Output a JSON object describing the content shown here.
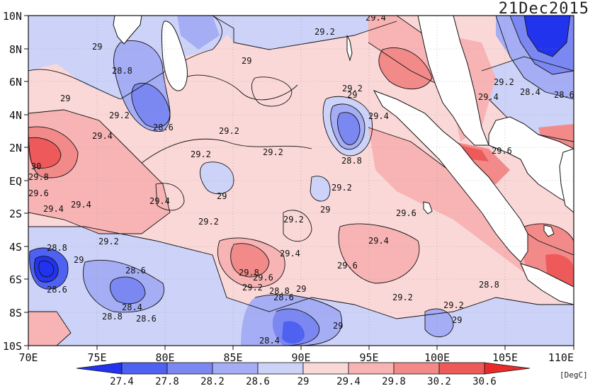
{
  "title": "21Dec2015",
  "unit": "[DegC]",
  "lat_labels": [
    "10N",
    "8N",
    "6N",
    "4N",
    "2N",
    "EQ",
    "2S",
    "4S",
    "6S",
    "8S",
    "10S"
  ],
  "lon_labels": [
    "70E",
    "75E",
    "80E",
    "85E",
    "90E",
    "95E",
    "100E",
    "105E",
    "110E"
  ],
  "colorbar": {
    "ticks": [
      "27.4",
      "27.8",
      "28.2",
      "28.6",
      "29",
      "29.4",
      "29.8",
      "30.2",
      "30.6"
    ],
    "colors": [
      "#2233ee",
      "#4f61f0",
      "#7c88f2",
      "#a5adf4",
      "#cdd3f8",
      "#fbd8d8",
      "#f8b4b4",
      "#f28a8a",
      "#ee5a5a",
      "#ea2a2a"
    ]
  },
  "contour_labels": [
    {
      "t": "29.2"
    },
    {
      "t": "29.4"
    },
    {
      "t": "29"
    },
    {
      "t": "28.8"
    },
    {
      "t": "29"
    },
    {
      "t": "29.2"
    },
    {
      "t": "29.4"
    },
    {
      "t": "29.2"
    },
    {
      "t": "28.4"
    },
    {
      "t": "29"
    },
    {
      "t": "29.2"
    },
    {
      "t": "29.4"
    },
    {
      "t": "28.6"
    },
    {
      "t": "28.6"
    },
    {
      "t": "29"
    },
    {
      "t": "29.2"
    },
    {
      "t": "29.6"
    },
    {
      "t": "29.4"
    },
    {
      "t": "29.2"
    },
    {
      "t": "29.2"
    },
    {
      "t": "28.8"
    },
    {
      "t": "30"
    },
    {
      "t": "29.8"
    },
    {
      "t": "29.6"
    },
    {
      "t": "29"
    },
    {
      "t": "29.2"
    },
    {
      "t": "29.4"
    },
    {
      "t": "29.4"
    },
    {
      "t": "29.4"
    },
    {
      "t": "29.2"
    },
    {
      "t": "29.2"
    },
    {
      "t": "29"
    },
    {
      "t": "29.6"
    },
    {
      "t": "29.2"
    },
    {
      "t": "28.8"
    },
    {
      "t": "29"
    },
    {
      "t": "29.4"
    },
    {
      "t": "29.4"
    },
    {
      "t": "28.6"
    },
    {
      "t": "28.6"
    },
    {
      "t": "29.8"
    },
    {
      "t": "29.6"
    },
    {
      "t": "29.2"
    },
    {
      "t": "28.8"
    },
    {
      "t": "28.6"
    },
    {
      "t": "29.6"
    },
    {
      "t": "28.8"
    },
    {
      "t": "28.4"
    },
    {
      "t": "28.6"
    },
    {
      "t": "29.2"
    },
    {
      "t": "29.2"
    },
    {
      "t": "29"
    },
    {
      "t": "28.4"
    },
    {
      "t": "29"
    },
    {
      "t": "28.8"
    },
    {
      "t": "29"
    }
  ]
}
